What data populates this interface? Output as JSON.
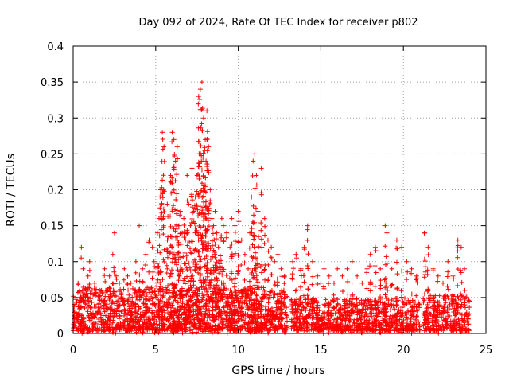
{
  "chart_data": {
    "type": "scatter",
    "title": "Day 092 of 2024, Rate Of TEC Index for receiver p802",
    "xlabel": "GPS time / hours",
    "ylabel": "ROTI / TECUs",
    "xlim": [
      0,
      25
    ],
    "ylim": [
      0,
      0.4
    ],
    "xticks": [
      0,
      5,
      10,
      15,
      20,
      25
    ],
    "yticks": [
      0,
      0.05,
      0.1,
      0.15,
      0.2,
      0.25,
      0.3,
      0.35,
      0.4
    ],
    "xtick_labels": [
      "0",
      "5",
      "10",
      "15",
      "20",
      "25"
    ],
    "ytick_labels": [
      "0",
      "0.05",
      "0.1",
      "0.15",
      "0.2",
      "0.25",
      "0.3",
      "0.35",
      "0.4"
    ],
    "grid": true,
    "marker": "+",
    "color": "#ff0000",
    "series": [
      {
        "name": "ROTI",
        "x": [
          0.3,
          0.5,
          0.6,
          0.9,
          1.0,
          1.3,
          1.6,
          1.9,
          2.2,
          2.4,
          2.5,
          2.6,
          2.8,
          3.1,
          3.3,
          3.5,
          3.8,
          4.0,
          4.2,
          4.4,
          4.6,
          4.8,
          4.9,
          5.1,
          5.2,
          5.3,
          5.4,
          5.5,
          5.7,
          5.9,
          6.0,
          6.1,
          6.2,
          6.3,
          6.4,
          6.5,
          6.6,
          6.7,
          6.8,
          6.9,
          7.0,
          7.1,
          7.2,
          7.3,
          7.4,
          7.5,
          7.6,
          7.7,
          7.8,
          7.9,
          8.0,
          8.05,
          8.1,
          8.2,
          8.3,
          8.4,
          8.5,
          8.6,
          8.7,
          8.8,
          8.9,
          9.0,
          9.1,
          9.3,
          9.5,
          9.6,
          9.8,
          10.0,
          10.2,
          10.4,
          10.6,
          10.7,
          10.8,
          10.9,
          11.0,
          11.1,
          11.2,
          11.4,
          11.6,
          11.8,
          12.0,
          12.2,
          12.4,
          12.6,
          12.8,
          13.3,
          13.5,
          13.8,
          14.0,
          14.2,
          14.5,
          14.8,
          15.0,
          15.2,
          15.5,
          15.8,
          16.0,
          16.3,
          16.6,
          16.9,
          17.2,
          17.5,
          17.8,
          18.0,
          18.3,
          18.6,
          18.9,
          19.0,
          19.3,
          19.6,
          19.9,
          20.2,
          20.5,
          20.8,
          21.3,
          21.5,
          21.8,
          22.1,
          22.4,
          22.7,
          23.0,
          23.3,
          23.5,
          23.7
        ],
        "y": [
          0.07,
          0.12,
          0.09,
          0.08,
          0.1,
          0.07,
          0.06,
          0.09,
          0.08,
          0.11,
          0.14,
          0.08,
          0.07,
          0.09,
          0.08,
          0.07,
          0.1,
          0.15,
          0.09,
          0.11,
          0.13,
          0.12,
          0.1,
          0.14,
          0.16,
          0.2,
          0.28,
          0.26,
          0.18,
          0.22,
          0.28,
          0.27,
          0.24,
          0.26,
          0.15,
          0.17,
          0.14,
          0.16,
          0.13,
          0.22,
          0.18,
          0.15,
          0.23,
          0.17,
          0.19,
          0.22,
          0.33,
          0.34,
          0.35,
          0.3,
          0.27,
          0.24,
          0.31,
          0.26,
          0.2,
          0.16,
          0.15,
          0.17,
          0.14,
          0.12,
          0.13,
          0.16,
          0.15,
          0.14,
          0.12,
          0.16,
          0.15,
          0.17,
          0.13,
          0.11,
          0.09,
          0.14,
          0.19,
          0.24,
          0.25,
          0.22,
          0.17,
          0.23,
          0.16,
          0.13,
          0.12,
          0.1,
          0.11,
          0.09,
          0.08,
          0.1,
          0.11,
          0.09,
          0.12,
          0.15,
          0.1,
          0.08,
          0.07,
          0.09,
          0.08,
          0.07,
          0.09,
          0.08,
          0.09,
          0.1,
          0.08,
          0.07,
          0.09,
          0.11,
          0.12,
          0.09,
          0.15,
          0.14,
          0.09,
          0.13,
          0.12,
          0.1,
          0.09,
          0.08,
          0.14,
          0.12,
          0.09,
          0.08,
          0.07,
          0.1,
          0.08,
          0.13,
          0.12,
          0.09
        ],
        "background_segments": [
          {
            "x_start": 0.0,
            "x_end": 13.0,
            "y_max": 0.06
          },
          {
            "x_start": 13.2,
            "x_end": 21.0,
            "y_max": 0.045
          },
          {
            "x_start": 21.2,
            "x_end": 24.0,
            "y_max": 0.05
          }
        ]
      }
    ]
  }
}
